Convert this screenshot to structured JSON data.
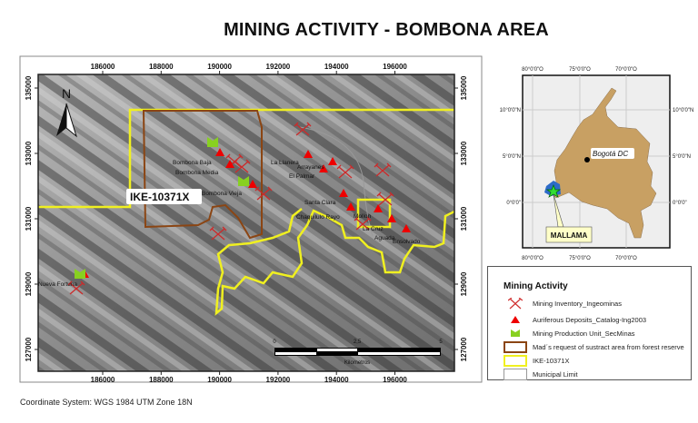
{
  "title": "MINING ACTIVITY - BOMBONA AREA",
  "coordinate_system": "Coordinate System: WGS 1984 UTM Zone 18N",
  "main_map": {
    "x_ticks": [
      "186000",
      "188000",
      "190000",
      "192000",
      "194000",
      "196000"
    ],
    "y_ticks": [
      "135000",
      "133000",
      "131000",
      "129000",
      "127000"
    ],
    "north_arrow": "N",
    "concession_label": "IKE-10371X",
    "scale_bar": {
      "labels": [
        "0",
        "2,5",
        "5"
      ],
      "unit": "Kilometros"
    },
    "place_labels": [
      "Bombona Baja",
      "Bombona Media",
      "Bombona Vieja",
      "La Llanera",
      "Arrayanes",
      "El Palmar",
      "Santa Clara",
      "Chaquilulo Rayo",
      "Mollon",
      "La Cruz",
      "Aguada",
      "Ensolvado",
      "Nueva Fortuna"
    ]
  },
  "inset_map": {
    "lon_ticks": [
      "80°0'0\"O",
      "75°0'0\"O",
      "70°0'0\"O"
    ],
    "lat_ticks": [
      "10°0'0\"N",
      "5°0'0\"N",
      "0°0'0\""
    ],
    "capital_label": "Bogotá DC",
    "callout_label": "MALLAMA",
    "country_color": "#c8a063"
  },
  "legend": {
    "title": "Mining Activity",
    "items": [
      {
        "label": "Mining Inventory_Ingeominas",
        "icon": "crossed-pickaxes-icon",
        "color": "#d03030"
      },
      {
        "label": "Auriferous Deposits_Catalog-Ing2003",
        "icon": "triangle-icon",
        "color": "#ee0000"
      },
      {
        "label": "Mining Production Unit_SecMinas",
        "icon": "green-chevron-icon",
        "color": "#88d020"
      },
      {
        "label": "Mad´s request of sustract area from forest reserve",
        "icon": "brown-outline",
        "color": "#8b4513"
      },
      {
        "label": "IKE-10371X",
        "icon": "yellow-outline",
        "color": "#f0f020"
      },
      {
        "label": "Municipal Limit",
        "icon": "gray-outline",
        "color": "#999999"
      }
    ]
  }
}
